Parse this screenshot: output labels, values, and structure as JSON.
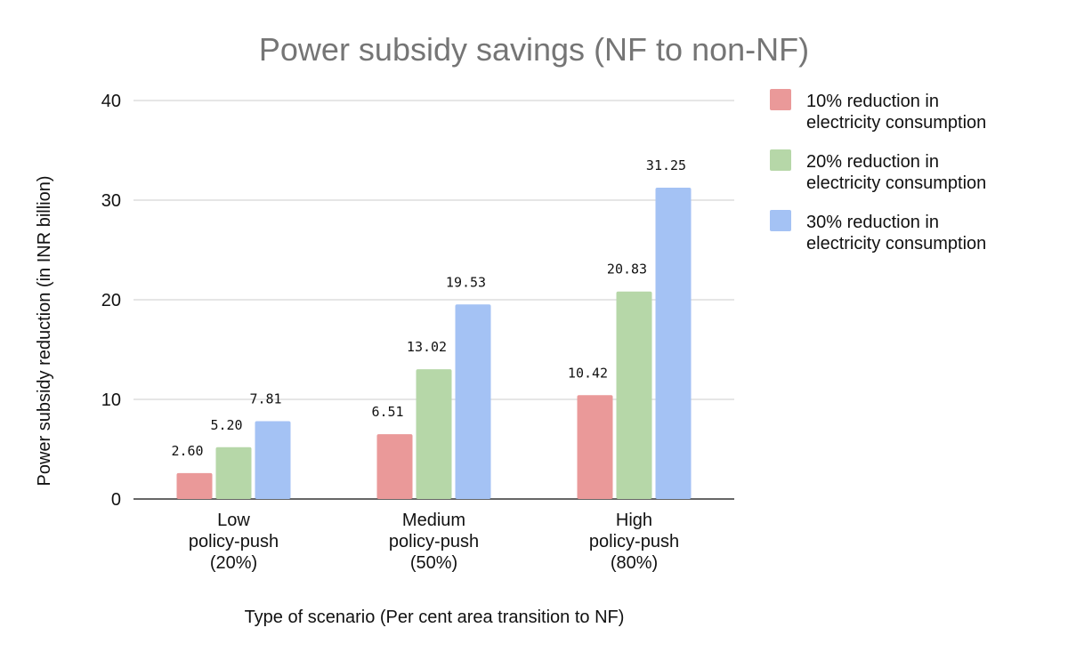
{
  "chart_data": {
    "type": "bar",
    "title": "Power subsidy savings (NF to non-NF)",
    "xlabel": "Type of scenario (Per cent area transition to NF)",
    "ylabel": "Power subsidy reduction (in INR billion)",
    "ylim": [
      0,
      40
    ],
    "yticks": [
      "0",
      "10",
      "20",
      "30",
      "40"
    ],
    "grid": true,
    "legend_position": "right",
    "categories": [
      [
        "Low",
        "policy-push",
        "(20%)"
      ],
      [
        "Medium",
        "policy-push",
        "(50%)"
      ],
      [
        "High",
        "policy-push",
        "(80%)"
      ]
    ],
    "series": [
      {
        "name": "10% reduction in electricity consumption",
        "legend_lines": [
          "10% reduction in",
          "electricity consumption"
        ],
        "color": "#ea9999",
        "values": [
          2.6,
          6.51,
          10.42
        ],
        "labels": [
          "2.60",
          "6.51",
          "10.42"
        ]
      },
      {
        "name": "20% reduction in electricity consumption",
        "legend_lines": [
          "20% reduction in",
          "electricity consumption"
        ],
        "color": "#b6d7a8",
        "values": [
          5.2,
          13.02,
          20.83
        ],
        "labels": [
          "5.20",
          "13.02",
          "20.83"
        ]
      },
      {
        "name": "30% reduction in electricity consumption",
        "legend_lines": [
          "30% reduction in",
          "electricity consumption"
        ],
        "color": "#a4c2f4",
        "values": [
          7.81,
          19.53,
          31.25
        ],
        "labels": [
          "7.81",
          "19.53",
          "31.25"
        ]
      }
    ]
  }
}
